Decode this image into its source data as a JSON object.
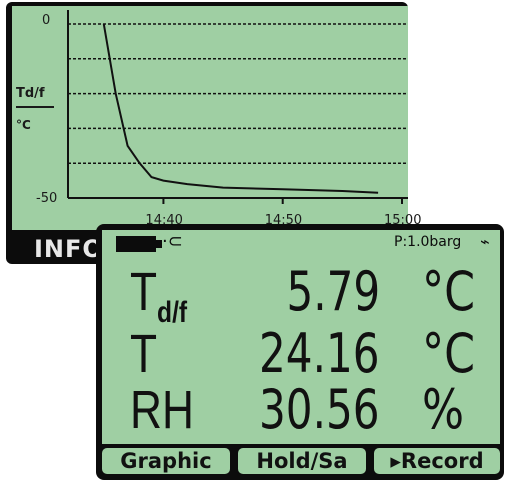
{
  "graph_screen": {
    "y_axis_label_top": "Td/f",
    "y_axis_label_bottom": "°C",
    "y_ticks": [
      "0",
      "-50"
    ],
    "x_ticks": [
      "14:40",
      "14:50",
      "15:00"
    ],
    "info_tab_label": "INFO"
  },
  "chart_data": {
    "type": "line",
    "xlabel": "",
    "ylabel": "Td/f °C",
    "ylim": [
      -50,
      0
    ],
    "x_ticks": [
      "14:40",
      "14:50",
      "15:00"
    ],
    "grid": true,
    "series": [
      {
        "x": [
          "14:35",
          "14:36",
          "14:37",
          "14:38",
          "14:39",
          "14:40",
          "14:42",
          "14:45",
          "14:50",
          "14:55",
          "14:58"
        ],
        "values": [
          0,
          -20,
          -35,
          -40,
          -44,
          -45,
          -46,
          -47,
          -47.5,
          -48,
          -48.5
        ]
      }
    ]
  },
  "readings_screen": {
    "pressure": "P:1.0barg",
    "rows": [
      {
        "symbol": "T",
        "subscript": "d/f",
        "value": "5.79",
        "unit": "°C"
      },
      {
        "symbol": "T",
        "subscript": "",
        "value": "24.16",
        "unit": "°C"
      },
      {
        "symbol": "RH",
        "subscript": "",
        "value": "30.56",
        "unit": "%"
      }
    ],
    "softkeys": [
      "Graphic",
      "Hold/Sa",
      "▸Record"
    ]
  },
  "colors": {
    "lcd_background": "#9fcfa3",
    "bezel": "#0c0c0c",
    "text": "#111111"
  },
  "icons": [
    "battery-icon",
    "plug-icon",
    "sensor-icon"
  ]
}
